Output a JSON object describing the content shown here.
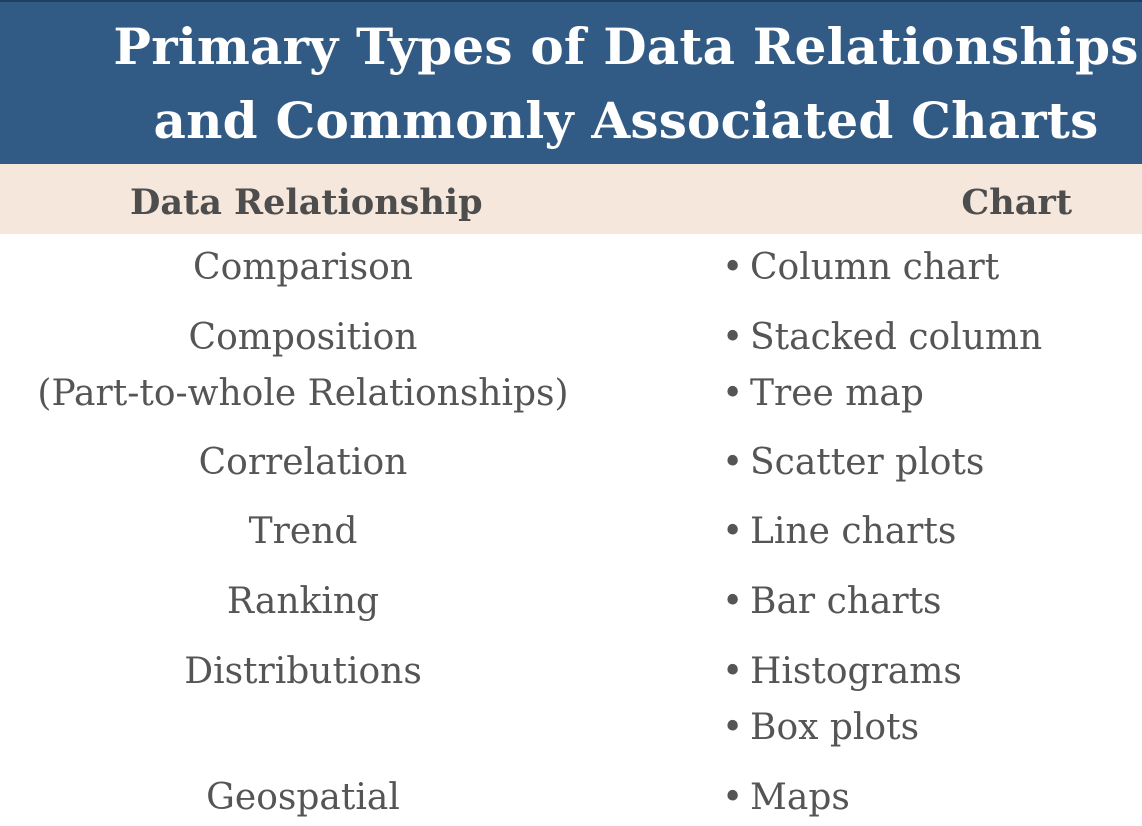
{
  "title": {
    "line1": "Primary Types of Data Relationships",
    "line2": "and Commonly Associated Charts"
  },
  "header": {
    "left": "Data Relationship",
    "right": "Chart"
  },
  "rows": [
    {
      "relationship": "Comparison",
      "charts": [
        "Column chart"
      ]
    },
    {
      "relationship": "Composition",
      "relationship_line2": "(Part-to-whole Relationships)",
      "charts": [
        "Stacked column",
        "Tree map"
      ]
    },
    {
      "relationship": "Correlation",
      "charts": [
        "Scatter plots"
      ]
    },
    {
      "relationship": "Trend",
      "charts": [
        "Line charts"
      ]
    },
    {
      "relationship": "Ranking",
      "charts": [
        "Bar charts"
      ]
    },
    {
      "relationship": "Distributions",
      "charts": [
        "Histograms",
        "Box plots"
      ]
    },
    {
      "relationship": "Geospatial",
      "charts": [
        "Maps"
      ]
    }
  ],
  "bullet": "•",
  "colors": {
    "title_bg": "#315b85",
    "header_bg": "#f6e7dd",
    "text": "#555555"
  }
}
